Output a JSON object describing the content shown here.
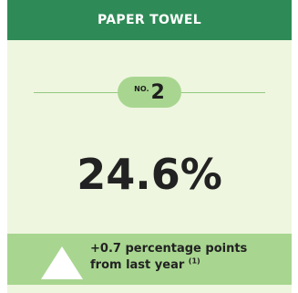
{
  "header": {
    "title": "PAPER TOWEL"
  },
  "rank": {
    "prefix": "NO.",
    "value": "2"
  },
  "share": {
    "value": "24.6%"
  },
  "change": {
    "line1": "+0.7 percentage points",
    "line2": "from last year",
    "footnote": "(1)"
  },
  "colors": {
    "header_bg": "#2e8b57",
    "card_bg": "#eef6df",
    "accent_green": "#a8d690"
  },
  "icons": {
    "trend": "up-triangle-icon"
  }
}
